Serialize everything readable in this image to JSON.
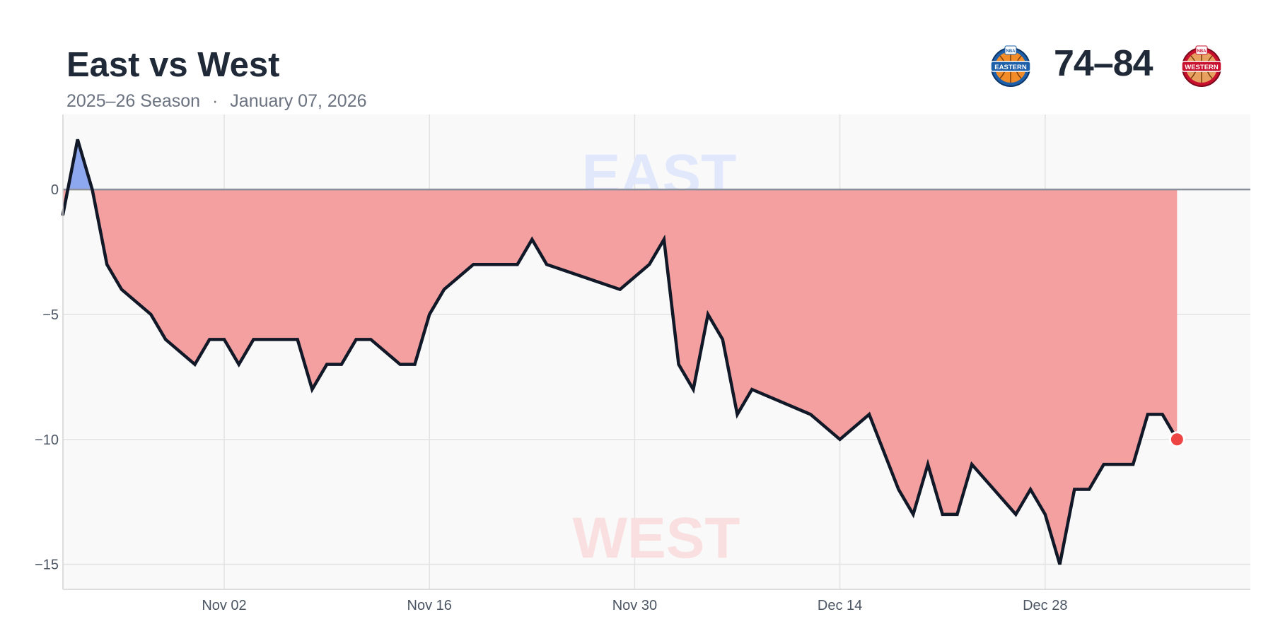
{
  "header": {
    "title": "East vs West",
    "season": "2025–26 Season",
    "separator": "·",
    "date": "January 07, 2026",
    "score": "74–84",
    "east_logo_text": "EASTERN",
    "west_logo_text": "WESTERN",
    "logo_badge": "NBA"
  },
  "watermarks": {
    "top": "EAST",
    "bottom": "WEST"
  },
  "colors": {
    "east_fill": "#8ea8f0",
    "west_fill": "#f4a0a0",
    "line": "#111827",
    "endpoint": "#ef4444",
    "east_watermark": "#e2e8fb",
    "west_watermark": "#f9dfe0",
    "plot_bg": "#f9f9f9",
    "grid": "#e3e3e3"
  },
  "chart_data": {
    "type": "area",
    "xlabel": "",
    "ylabel": "",
    "ylim": [
      -16,
      3
    ],
    "xlim": [
      "2025-10-22",
      "2026-01-11"
    ],
    "x_ticks": [
      "2025-11-02",
      "2025-11-16",
      "2025-11-30",
      "2025-12-14",
      "2025-12-28"
    ],
    "x_tick_labels": [
      "Nov 02",
      "Nov 16",
      "Nov 30",
      "Dec 14",
      "Dec 28"
    ],
    "y_ticks": [
      0,
      -5,
      -10,
      -15
    ],
    "y_tick_labels": [
      "0",
      "−5",
      "−10",
      "−15"
    ],
    "grid": true,
    "series": [
      {
        "x": [
          "2025-10-22",
          "2025-10-23",
          "2025-10-24",
          "2025-10-25",
          "2025-10-26",
          "2025-10-28",
          "2025-10-29",
          "2025-10-31",
          "2025-11-01",
          "2025-11-02",
          "2025-11-03",
          "2025-11-04",
          "2025-11-05",
          "2025-11-07",
          "2025-11-08",
          "2025-11-09",
          "2025-11-10",
          "2025-11-11",
          "2025-11-12",
          "2025-11-14",
          "2025-11-15",
          "2025-11-16",
          "2025-11-17",
          "2025-11-19",
          "2025-11-22",
          "2025-11-23",
          "2025-11-24",
          "2025-11-29",
          "2025-12-01",
          "2025-12-02",
          "2025-12-03",
          "2025-12-04",
          "2025-12-05",
          "2025-12-06",
          "2025-12-07",
          "2025-12-08",
          "2025-12-12",
          "2025-12-14",
          "2025-12-16",
          "2025-12-18",
          "2025-12-19",
          "2025-12-20",
          "2025-12-21",
          "2025-12-22",
          "2025-12-23",
          "2025-12-26",
          "2025-12-27",
          "2025-12-28",
          "2025-12-29",
          "2025-12-30",
          "2025-12-31",
          "2026-01-01",
          "2026-01-03",
          "2026-01-04",
          "2026-01-05",
          "2026-01-06"
        ],
        "values": [
          -1,
          2,
          0,
          -3,
          -4,
          -5,
          -6,
          -7,
          -6,
          -6,
          -7,
          -6,
          -6,
          -6,
          -8,
          -7,
          -7,
          -6,
          -6,
          -7,
          -7,
          -5,
          -4,
          -3,
          -3,
          -2,
          -3,
          -4,
          -3,
          -2,
          -7,
          -8,
          -5,
          -6,
          -9,
          -8,
          -9,
          -10,
          -9,
          -12,
          -13,
          -11,
          -13,
          -13,
          -11,
          -13,
          -12,
          -13,
          -15,
          -12,
          -12,
          -11,
          -11,
          -9,
          -9,
          -10
        ]
      }
    ]
  }
}
